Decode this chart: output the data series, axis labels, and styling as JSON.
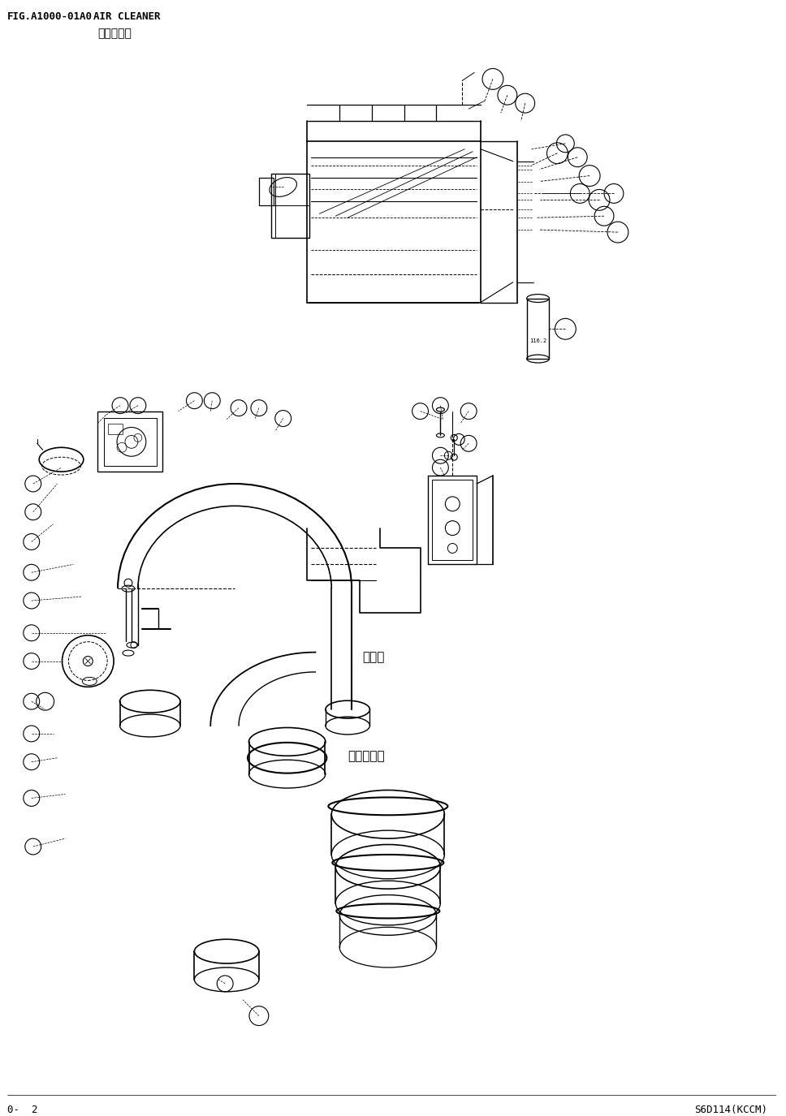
{
  "title_line1": "FIG.A1000-01A0    AIR CLEANER",
  "title_line2": "空气滤清器",
  "footer_left": "0-  2",
  "footer_right": "S6D114(KCCM)",
  "label_engine": "发动机",
  "label_turbo": "涡轮增压器",
  "bg_color": "#ffffff",
  "line_color": "#000000",
  "font_size_title": 10,
  "font_size_footer": 9,
  "font_size_label": 11
}
